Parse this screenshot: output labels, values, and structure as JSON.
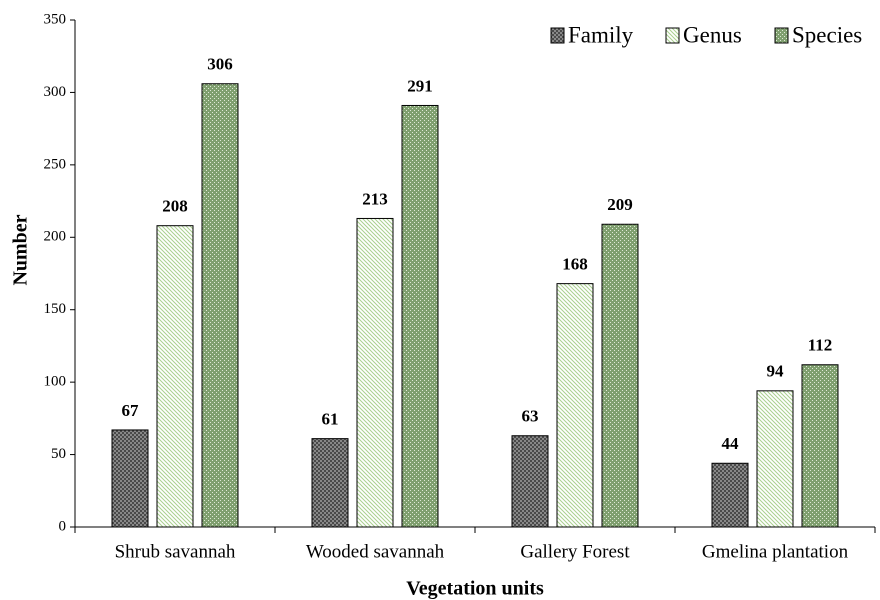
{
  "chart_data": {
    "type": "bar",
    "x_label": "Vegetation units",
    "y_label": "Number",
    "categories": [
      "Shrub savannah",
      "Wooded savannah",
      "Gallery Forest",
      "Gmelina plantation"
    ],
    "series": [
      {
        "name": "Family",
        "color": "#4a4a4a",
        "values": [
          67,
          61,
          63,
          44
        ]
      },
      {
        "name": "Genus",
        "color": "#a9d08e",
        "values": [
          208,
          213,
          168,
          94
        ]
      },
      {
        "name": "Species",
        "color": "#7f9f6f",
        "values": [
          306,
          291,
          209,
          112
        ]
      }
    ],
    "ylim": [
      0,
      350
    ],
    "yticks": [
      0,
      50,
      100,
      150,
      200,
      250,
      300,
      350
    ],
    "legend": "top-right",
    "grid": false
  }
}
